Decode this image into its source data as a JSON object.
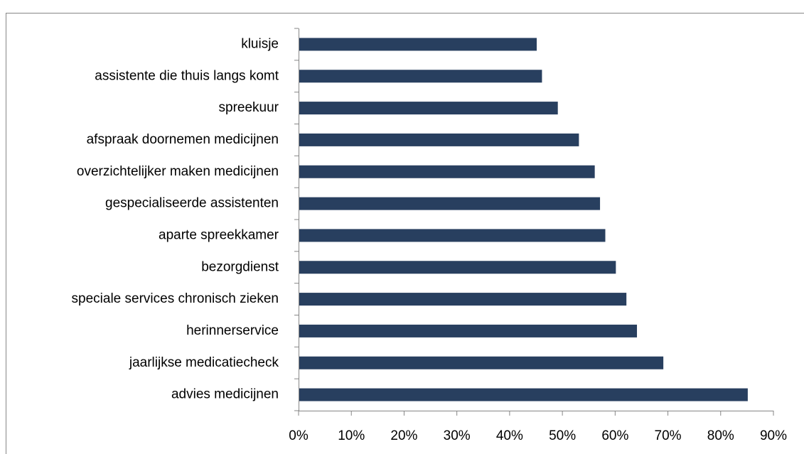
{
  "chart_data": {
    "type": "bar",
    "orientation": "horizontal",
    "categories": [
      "kluisje",
      "assistente die thuis langs komt",
      "spreekuur",
      "afspraak doornemen medicijnen",
      "overzichtelijker maken medicijnen",
      "gespecialiseerde assistenten",
      "aparte spreekkamer",
      "bezorgdienst",
      "speciale services chronisch zieken",
      "herinnerservice",
      "jaarlijkse medicatiecheck",
      "advies medicijnen"
    ],
    "values": [
      45,
      46,
      49,
      53,
      56,
      57,
      58,
      60,
      62,
      64,
      69,
      85
    ],
    "color": "#283f5f",
    "xlim": [
      0,
      90
    ],
    "xticks": [
      {
        "value": 0,
        "label": "0%"
      },
      {
        "value": 10,
        "label": "10%"
      },
      {
        "value": 20,
        "label": "20%"
      },
      {
        "value": 30,
        "label": "30%"
      },
      {
        "value": 40,
        "label": "40%"
      },
      {
        "value": 50,
        "label": "50%"
      },
      {
        "value": 60,
        "label": "60%"
      },
      {
        "value": 70,
        "label": "70%"
      },
      {
        "value": 80,
        "label": "80%"
      },
      {
        "value": 90,
        "label": "90%"
      }
    ],
    "grid": false
  }
}
